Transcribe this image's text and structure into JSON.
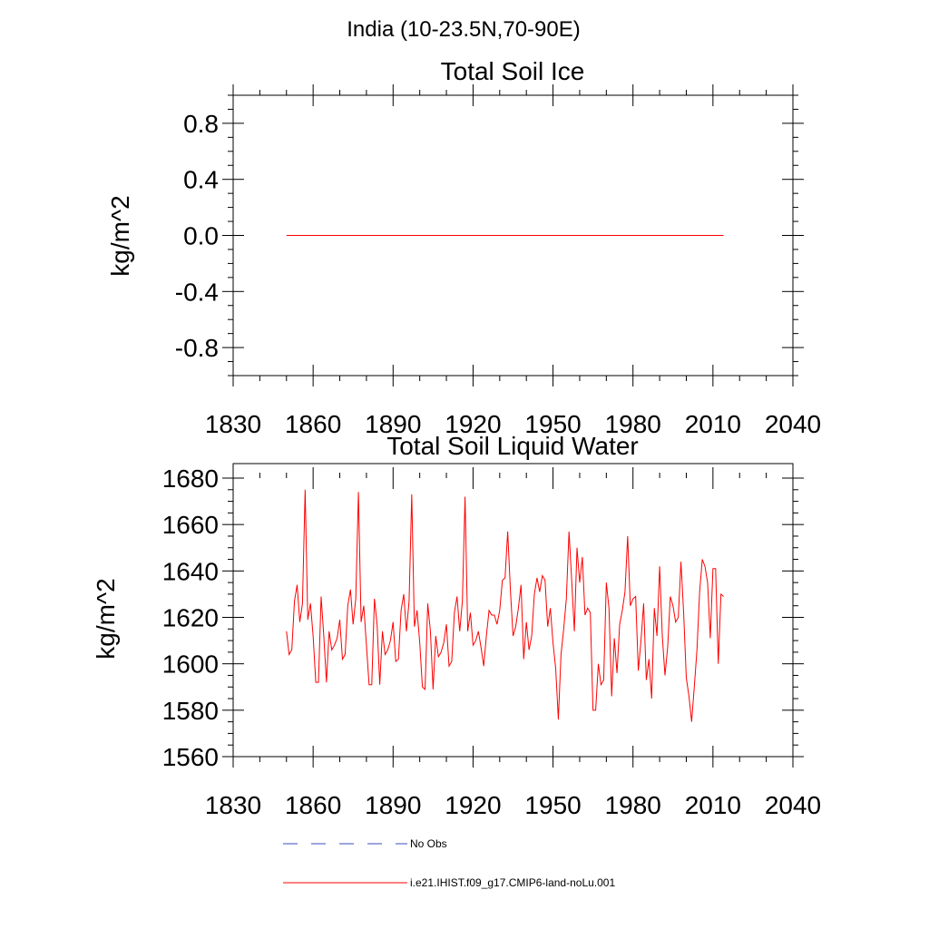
{
  "figure": {
    "title": "India (10-23.5N,70-90E)"
  },
  "chart_data": [
    {
      "type": "line",
      "title": "Total Soil Ice",
      "xlabel": "",
      "ylabel": "kg/m^2",
      "xlim": [
        1830,
        2040
      ],
      "ylim": [
        -1.0,
        1.0
      ],
      "xticks": [
        "1830",
        "1860",
        "1890",
        "1920",
        "1950",
        "1980",
        "2010",
        "2040"
      ],
      "yticks": [
        "-0.8",
        "-0.4",
        "0.0",
        "0.4",
        "0.8"
      ],
      "grid": false,
      "series": [
        {
          "name": "i.e21.IHIST.f09_g17.CMIP6-land-noLu.001",
          "color": "#ff0000",
          "x": [
            1850,
            2014
          ],
          "y": [
            0.0,
            0.0
          ]
        }
      ]
    },
    {
      "type": "line",
      "title": "Total Soil Liquid Water",
      "xlabel": "",
      "ylabel": "kg/m^2",
      "xlim": [
        1830,
        2040
      ],
      "ylim": [
        1560,
        1680
      ],
      "xticks": [
        "1830",
        "1860",
        "1890",
        "1920",
        "1950",
        "1980",
        "2010",
        "2040"
      ],
      "yticks": [
        "1560",
        "1580",
        "1600",
        "1620",
        "1640",
        "1660",
        "1680"
      ],
      "grid": false,
      "series": [
        {
          "name": "i.e21.IHIST.f09_g17.CMIP6-land-noLu.001",
          "color": "#ff0000",
          "x_start": 1850,
          "x_step": 1,
          "y": [
            1614,
            1604,
            1606,
            1627,
            1634,
            1618,
            1626,
            1675,
            1619,
            1626,
            1612,
            1592,
            1592,
            1629,
            1612,
            1592,
            1614,
            1606,
            1608,
            1611,
            1619,
            1602,
            1604,
            1625,
            1632,
            1617,
            1628,
            1674,
            1618,
            1625,
            1608,
            1591,
            1591,
            1628,
            1617,
            1591,
            1614,
            1604,
            1606,
            1610,
            1618,
            1601,
            1602,
            1623,
            1630,
            1614,
            1627,
            1673,
            1616,
            1623,
            1609,
            1590,
            1589,
            1626,
            1614,
            1589,
            1612,
            1603,
            1605,
            1609,
            1617,
            1599,
            1601,
            1622,
            1629,
            1614,
            1627,
            1672,
            1614,
            1622,
            1608,
            1610,
            1614,
            1607,
            1599,
            1612,
            1623,
            1621,
            1621,
            1617,
            1623,
            1636,
            1637,
            1657,
            1632,
            1612,
            1616,
            1624,
            1634,
            1602,
            1618,
            1606,
            1612,
            1630,
            1637,
            1631,
            1638,
            1636,
            1616,
            1624,
            1609,
            1598,
            1576,
            1604,
            1615,
            1628,
            1657,
            1636,
            1614,
            1650,
            1635,
            1646,
            1621,
            1624,
            1622,
            1580,
            1580,
            1600,
            1591,
            1593,
            1635,
            1624,
            1586,
            1611,
            1596,
            1617,
            1623,
            1631,
            1655,
            1625,
            1628,
            1629,
            1597,
            1610,
            1626,
            1593,
            1602,
            1585,
            1624,
            1612,
            1642,
            1612,
            1595,
            1607,
            1629,
            1625,
            1618,
            1620,
            1644,
            1622,
            1594,
            1586,
            1575,
            1590,
            1606,
            1631,
            1645,
            1642,
            1635,
            1611,
            1641,
            1641,
            1600,
            1630,
            1629
          ]
        }
      ]
    }
  ],
  "legend": {
    "entries": [
      {
        "label": "No Obs",
        "style": "dashed",
        "color": "#3a4bbd"
      },
      {
        "label": "i.e21.IHIST.f09_g17.CMIP6-land-noLu.001",
        "style": "solid",
        "color": "#ff0000"
      }
    ]
  }
}
